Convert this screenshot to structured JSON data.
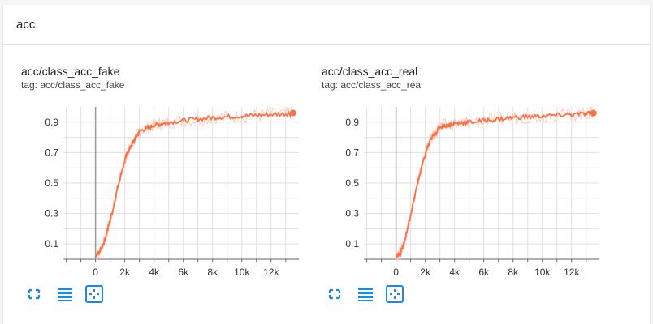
{
  "header": {
    "title": "acc"
  },
  "panels": [
    {
      "title": "acc/class_acc_fake",
      "tag": "tag: acc/class_acc_fake",
      "buttons": [
        "fullscreen-icon",
        "legend-icon",
        "fit-domain-icon"
      ]
    },
    {
      "title": "acc/class_acc_real",
      "tag": "tag: acc/class_acc_real",
      "buttons": [
        "fullscreen-icon",
        "legend-icon",
        "fit-domain-icon"
      ]
    }
  ],
  "colors": {
    "series": "#ff7043",
    "series_raw": "#ffccbc",
    "axis": "#999999",
    "grid": "#e0e0e0"
  },
  "chart_data": [
    {
      "type": "line",
      "title": "acc/class_acc_fake",
      "xlabel": "",
      "ylabel": "",
      "x_ticks": [
        0,
        2000,
        4000,
        6000,
        8000,
        10000,
        12000
      ],
      "x_tick_labels": [
        "0",
        "2k",
        "4k",
        "6k",
        "8k",
        "10k",
        "12k"
      ],
      "y_ticks": [
        0.1,
        0.3,
        0.5,
        0.7,
        0.9
      ],
      "y_tick_labels": [
        "0.1",
        "0.3",
        "0.5",
        "0.7",
        "0.9"
      ],
      "xlim": [
        -2200,
        13900
      ],
      "ylim": [
        0.0,
        1.0
      ],
      "grid": true,
      "series": [
        {
          "x": [
            0,
            300,
            600,
            900,
            1200,
            1500,
            1800,
            2100,
            2400,
            2700,
            3000,
            3500,
            4000,
            4500,
            5000,
            6000,
            7000,
            8000,
            9000,
            10000,
            11000,
            12000,
            13000,
            13500
          ],
          "y": [
            0.02,
            0.05,
            0.12,
            0.22,
            0.33,
            0.47,
            0.58,
            0.68,
            0.74,
            0.79,
            0.84,
            0.86,
            0.88,
            0.89,
            0.9,
            0.91,
            0.92,
            0.93,
            0.935,
            0.94,
            0.945,
            0.95,
            0.955,
            0.96
          ]
        }
      ]
    },
    {
      "type": "line",
      "title": "acc/class_acc_real",
      "xlabel": "",
      "ylabel": "",
      "x_ticks": [
        0,
        2000,
        4000,
        6000,
        8000,
        10000,
        12000
      ],
      "x_tick_labels": [
        "0",
        "2k",
        "4k",
        "6k",
        "8k",
        "10k",
        "12k"
      ],
      "y_ticks": [
        0.1,
        0.3,
        0.5,
        0.7,
        0.9
      ],
      "y_tick_labels": [
        "0.1",
        "0.3",
        "0.5",
        "0.7",
        "0.9"
      ],
      "xlim": [
        -2200,
        13900
      ],
      "ylim": [
        0.0,
        1.0
      ],
      "grid": true,
      "series": [
        {
          "x": [
            0,
            300,
            600,
            900,
            1200,
            1500,
            1800,
            2100,
            2400,
            2700,
            3000,
            3500,
            4000,
            4500,
            5000,
            6000,
            7000,
            8000,
            9000,
            10000,
            11000,
            12000,
            13000,
            13500
          ],
          "y": [
            0.02,
            0.04,
            0.12,
            0.25,
            0.38,
            0.51,
            0.62,
            0.72,
            0.79,
            0.83,
            0.87,
            0.88,
            0.89,
            0.895,
            0.9,
            0.91,
            0.92,
            0.93,
            0.935,
            0.94,
            0.945,
            0.95,
            0.955,
            0.96
          ]
        }
      ]
    }
  ]
}
